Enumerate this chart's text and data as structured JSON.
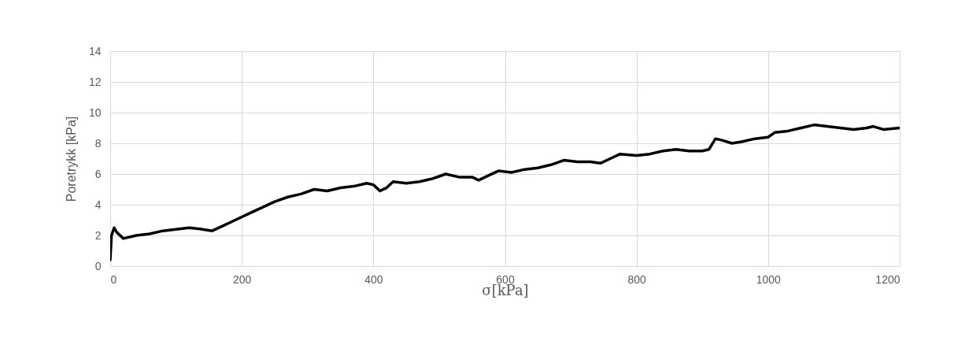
{
  "chart_data": {
    "type": "line",
    "xlabel": "σ[kPa]",
    "ylabel": "Poretrykk [kPa]",
    "x": [
      0,
      2,
      6,
      10,
      20,
      40,
      60,
      80,
      100,
      120,
      140,
      155,
      170,
      190,
      210,
      230,
      250,
      270,
      290,
      310,
      330,
      350,
      370,
      390,
      400,
      410,
      420,
      430,
      450,
      470,
      490,
      510,
      530,
      550,
      560,
      575,
      590,
      610,
      630,
      650,
      670,
      690,
      710,
      730,
      745,
      760,
      775,
      800,
      820,
      840,
      860,
      880,
      900,
      910,
      920,
      930,
      945,
      960,
      980,
      1000,
      1010,
      1030,
      1050,
      1070,
      1090,
      1110,
      1130,
      1150,
      1160,
      1175,
      1200
    ],
    "series": [
      {
        "color": "#000000",
        "values": [
          0.4,
          2.0,
          2.5,
          2.2,
          1.8,
          2.0,
          2.1,
          2.3,
          2.4,
          2.5,
          2.4,
          2.3,
          2.6,
          3.0,
          3.4,
          3.8,
          4.2,
          4.5,
          4.7,
          5.0,
          4.9,
          5.1,
          5.2,
          5.4,
          5.3,
          4.9,
          5.1,
          5.5,
          5.4,
          5.5,
          5.7,
          6.0,
          5.8,
          5.8,
          5.6,
          5.9,
          6.2,
          6.1,
          6.3,
          6.4,
          6.6,
          6.9,
          6.8,
          6.8,
          6.7,
          7.0,
          7.3,
          7.2,
          7.3,
          7.5,
          7.6,
          7.5,
          7.5,
          7.6,
          8.3,
          8.2,
          8.0,
          8.1,
          8.3,
          8.4,
          8.7,
          8.8,
          9.0,
          9.2,
          9.1,
          9.0,
          8.9,
          9.0,
          9.1,
          8.9,
          9.0
        ]
      }
    ],
    "xlim": [
      0,
      1200
    ],
    "xticks": [
      0,
      200,
      400,
      600,
      800,
      1000,
      1200
    ],
    "ylim": [
      0,
      14
    ],
    "yticks": [
      0,
      2,
      4,
      6,
      8,
      10,
      12,
      14
    ],
    "grid": true,
    "marker": "none",
    "line_style": "solid"
  }
}
